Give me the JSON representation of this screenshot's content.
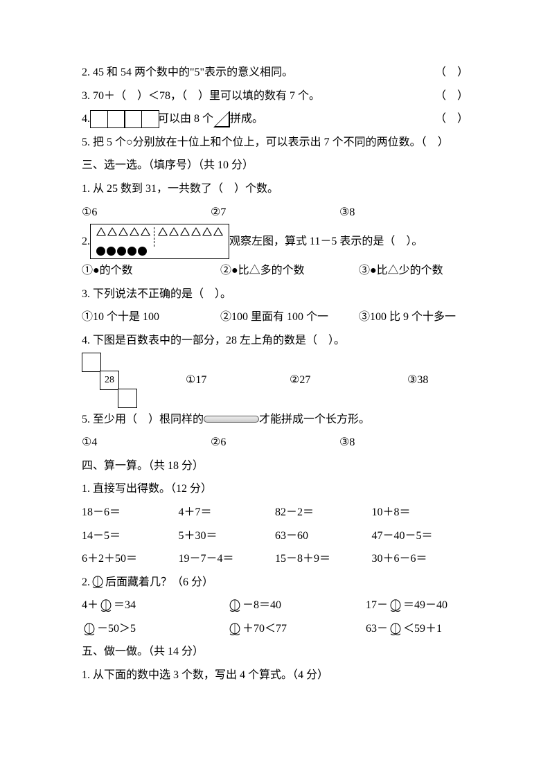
{
  "tf": {
    "q2": "2. 45 和 54 两个数中的\"5\"表示的意义相同。",
    "q3": "3. 70＋（　）＜78，（　）里可以填的数有 7 个。",
    "q4a": "4. ",
    "q4b": "可以由 8 个",
    "q4c": "拼成。",
    "q5": "5. 把 5 个○分别放在十位上和个位上，可以表示出 7 个不同的两位数。（　）",
    "paren": "（　）"
  },
  "sec3": {
    "title": "三、选一选。（填序号）（共 10 分）",
    "q1": "1. 从 25 数到 31，一共数了（　）个数。",
    "q1o": {
      "a": "①6",
      "b": "②7",
      "c": "③8"
    },
    "q2tail": "观察左图，算式 11－5 表示的是（　）。",
    "q2o": {
      "a": "①●的个数",
      "b": "②●比△多的个数",
      "c": "③●比△少的个数"
    },
    "q3": "3. 下列说法不正确的是（　）。",
    "q3o": {
      "a": "①10 个十是 100",
      "b": "②100 里面有 100 个一",
      "c": "③100 比 9 个十多一"
    },
    "q4": "4. 下图是百数表中的一部分，28 左上角的数是（　）。",
    "q4cell": "28",
    "q4o": {
      "a": "①17",
      "b": "②27",
      "c": "③38"
    },
    "q5a": "5. 至少用（　）根同样的",
    "q5b": "才能拼成一个长方形。",
    "q5o": {
      "a": "①4",
      "b": "②6",
      "c": "③8"
    }
  },
  "sec4": {
    "title": "四、算一算。（共 18 分）",
    "st1": "1. 直接写出得数。（12 分）",
    "r1": {
      "a": "18－6＝",
      "b": "4＋7＝",
      "c": "82－2＝",
      "d": "10＋8＝"
    },
    "r2": {
      "a": "14－5＝",
      "b": "5＋30＝",
      "c": "63－60",
      "d": "47－40－5＝"
    },
    "r3": {
      "a": "6＋2＋50＝",
      "b": "19－7－4＝",
      "c": "15－8＋9＝",
      "d": "30＋6－6＝"
    },
    "st2a": "2. ",
    "st2b": "后面藏着几？（6 分）",
    "eqA": {
      "a1": "4＋",
      "a2": "＝34",
      "b1": "",
      "b2": "－8＝40",
      "c1": "17－",
      "c2": "＝49－40"
    },
    "eqB": {
      "a1": "",
      "a2": "－50＞5",
      "b1": "",
      "b2": "＋70＜77",
      "c1": "63－",
      "c2": "＜59＋1"
    }
  },
  "sec5": {
    "title": "五、做一做。（共 14 分）",
    "q1": "1. 从下面的数中选 3 个数，写出 4 个算式。（4 分）"
  },
  "style": {
    "triangles": 11,
    "dots": 5
  }
}
